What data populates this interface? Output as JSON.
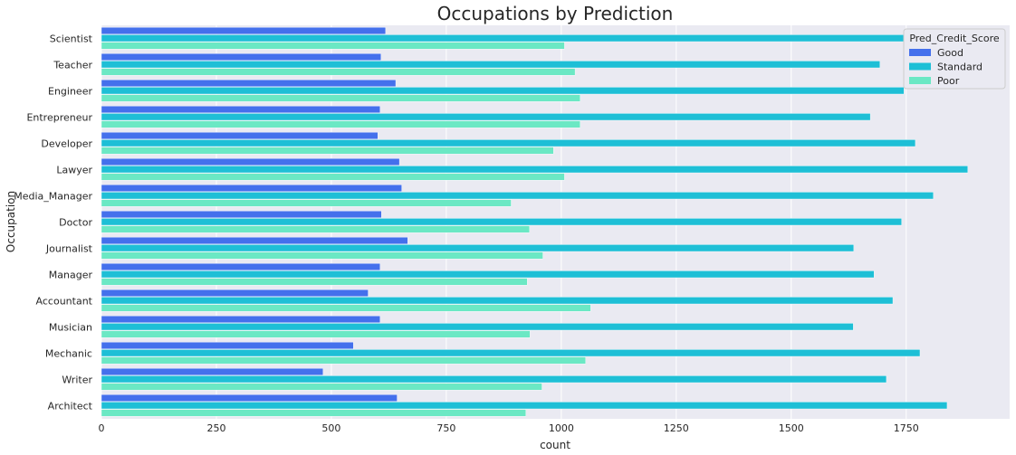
{
  "chart_data": {
    "type": "bar",
    "orientation": "horizontal",
    "title": "Occupations by Prediction",
    "xlabel": "count",
    "ylabel": "Occupation",
    "xlim": [
      0,
      1975
    ],
    "xticks": [
      0,
      250,
      500,
      750,
      1000,
      1250,
      1500,
      1750
    ],
    "grid": true,
    "legend_position": "top-right",
    "legend_title": "Pred_Credit_Score",
    "categories": [
      "Scientist",
      "Teacher",
      "Engineer",
      "Entrepreneur",
      "Developer",
      "Lawyer",
      "Media_Manager",
      "Doctor",
      "Journalist",
      "Manager",
      "Accountant",
      "Musician",
      "Mechanic",
      "Writer",
      "Architect"
    ],
    "series": [
      {
        "name": "Good",
        "color": "#4470ec",
        "values": [
          618,
          608,
          640,
          606,
          601,
          648,
          653,
          609,
          666,
          606,
          580,
          606,
          548,
          482,
          643
        ]
      },
      {
        "name": "Standard",
        "color": "#1ebfd6",
        "values": [
          1745,
          1693,
          1745,
          1672,
          1770,
          1884,
          1809,
          1740,
          1636,
          1680,
          1721,
          1635,
          1780,
          1707,
          1839
        ]
      },
      {
        "name": "Poor",
        "color": "#6be8c4",
        "values": [
          1007,
          1030,
          1041,
          1041,
          983,
          1007,
          891,
          931,
          960,
          926,
          1064,
          932,
          1053,
          958,
          923
        ]
      }
    ]
  }
}
